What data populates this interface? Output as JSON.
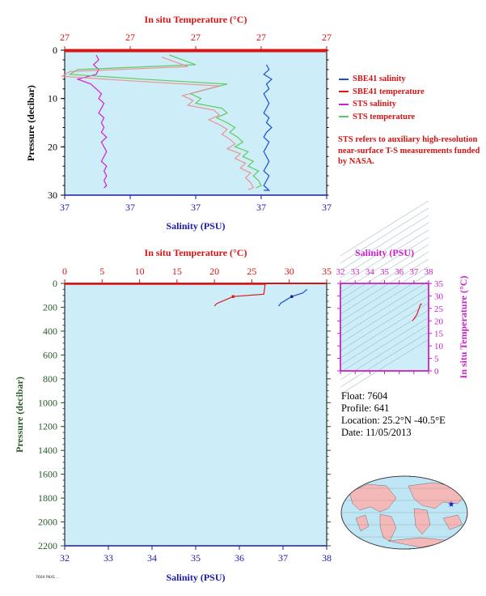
{
  "colors": {
    "background": "#ffffff",
    "plot_bg": "#cdeef8",
    "axis_red": "#d21414",
    "axis_blue": "#1a1aa8",
    "axis_green": "#2a5a2a",
    "axis_magenta": "#c81ec8",
    "sbe_salinity": "#1a4fd6",
    "sbe_temperature": "#e01818",
    "sts_salinity": "#d21ed2",
    "sts_temperature": "#5fc95f"
  },
  "legend": [
    {
      "label": "SBE41 salinity",
      "color": "#1a4fd6"
    },
    {
      "label": "SBE41 temperature",
      "color": "#e01818"
    },
    {
      "label": "STS salinity",
      "color": "#d21ed2"
    },
    {
      "label": "STS temperature",
      "color": "#5fc95f"
    }
  ],
  "note": "STS refers to auxiliary high-resolution near-surface T-S measurements funded by NASA.",
  "info": {
    "float": "Float: 7604",
    "profile": "Profile: 641",
    "location": "Location: 25.2°N -40.5°E",
    "date": "Date: 11/05/2013"
  },
  "tiny_label": "7604 P641 ...",
  "chart_data": [
    {
      "type": "line",
      "title": "",
      "top_axis_label": "In situ Temperature (°C)",
      "top_ticks": [
        "27",
        "27",
        "27",
        "27",
        "27"
      ],
      "xlabel": "Salinity (PSU)",
      "bottom_ticks": [
        "37",
        "37",
        "37",
        "37",
        "37"
      ],
      "ylabel": "Pressure (decibar)",
      "y_ticks": [
        "0",
        "10",
        "20",
        "30"
      ],
      "ylim": [
        0,
        30
      ],
      "series": [
        {
          "name": "SBE41 salinity",
          "x": [
            0.77,
            0.78,
            0.76,
            0.79,
            0.77,
            0.78,
            0.76,
            0.77,
            0.78,
            0.77,
            0.76,
            0.78,
            0.77,
            0.79,
            0.77,
            0.76,
            0.78,
            0.77,
            0.76,
            0.77,
            0.78,
            0.77,
            0.76,
            0.78,
            0.77,
            0.76,
            0.77,
            0.78,
            0.76
          ],
          "y": [
            3,
            4,
            5,
            6,
            7,
            8,
            9,
            10,
            11,
            12,
            13,
            14,
            15,
            16,
            17,
            18,
            19,
            20,
            21,
            22,
            23,
            24,
            25,
            26,
            27,
            28,
            28.5,
            29,
            29
          ]
        },
        {
          "name": "SBE41 temperature",
          "x": [
            0.01,
            0.01
          ],
          "y": [
            0.2,
            0.2
          ]
        },
        {
          "name": "STS salinity",
          "x": [
            0.12,
            0.13,
            0.11,
            0.13,
            0.12,
            0.05,
            0.1,
            0.12,
            0.14,
            0.13,
            0.15,
            0.14,
            0.13,
            0.15,
            0.14,
            0.15,
            0.14,
            0.16,
            0.14,
            0.15,
            0.16,
            0.15,
            0.14,
            0.16,
            0.15,
            0.16,
            0.15,
            0.16,
            0.15
          ],
          "y": [
            1,
            2,
            3,
            4,
            5,
            6,
            7,
            8,
            9,
            10,
            11,
            12,
            13,
            14,
            15,
            16,
            17,
            18,
            19,
            20,
            21,
            22,
            23,
            24,
            25,
            26,
            27,
            28,
            28.5
          ]
        },
        {
          "name": "STS temperature",
          "x": [
            0.4,
            0.45,
            0.5,
            0.05,
            0.02,
            0.3,
            0.62,
            0.55,
            0.48,
            0.52,
            0.5,
            0.6,
            0.62,
            0.58,
            0.62,
            0.65,
            0.63,
            0.66,
            0.68,
            0.65,
            0.7,
            0.68,
            0.72,
            0.7,
            0.74,
            0.72,
            0.74,
            0.75,
            0.73
          ],
          "y": [
            1,
            2,
            3,
            4,
            5,
            6,
            7,
            8,
            9,
            10,
            11,
            12,
            13,
            14,
            15,
            16,
            17,
            18,
            19,
            20,
            21,
            22,
            23,
            24,
            25,
            26,
            27,
            28,
            28.5
          ]
        }
      ],
      "grid": false,
      "legend_position": "right"
    },
    {
      "type": "line",
      "title": "",
      "top_axis_label": "In situ Temperature (°C)",
      "top_ticks": [
        "0",
        "5",
        "10",
        "15",
        "20",
        "25",
        "30",
        "35"
      ],
      "xlim_top": [
        0,
        35
      ],
      "xlabel": "Salinity (PSU)",
      "bottom_ticks": [
        "32",
        "33",
        "34",
        "35",
        "36",
        "37",
        "38"
      ],
      "xlim": [
        32,
        38
      ],
      "ylabel": "Pressure (decibar)",
      "y_ticks": [
        "0",
        "200",
        "400",
        "600",
        "800",
        "1000",
        "1200",
        "1400",
        "1600",
        "1800",
        "2000",
        "2200"
      ],
      "ylim": [
        0,
        2200
      ],
      "series": [
        {
          "name": "Temperature",
          "x": [
            26.8,
            26.6,
            22.5,
            20.3,
            20.0
          ],
          "y": [
            0,
            90,
            110,
            170,
            190
          ]
        },
        {
          "name": "Salinity",
          "x": [
            37.55,
            37.45,
            37.2,
            36.95,
            36.9
          ],
          "y": [
            50,
            80,
            110,
            165,
            190
          ]
        }
      ],
      "grid": false
    },
    {
      "type": "line",
      "title": "",
      "top_axis_label": "Salinity (PSU)",
      "top_ticks": [
        "32",
        "33",
        "34",
        "35",
        "36",
        "37",
        "38"
      ],
      "xlim": [
        32,
        38
      ],
      "right_axis_label": "In situ Temperature (°C)",
      "right_ticks": [
        "0",
        "5",
        "10",
        "15",
        "20",
        "25",
        "30",
        "35"
      ],
      "ylim": [
        0,
        35
      ],
      "series": [
        {
          "name": "T-S",
          "x": [
            36.9,
            37.2,
            37.45,
            37.55
          ],
          "y": [
            20.0,
            22.5,
            26.6,
            26.8
          ]
        }
      ],
      "grid": false
    }
  ]
}
